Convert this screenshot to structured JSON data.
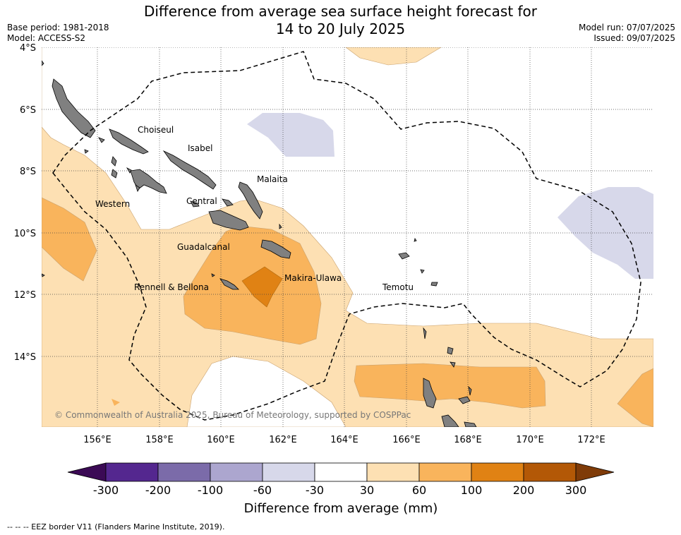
{
  "title_line1": "Difference from average sea surface height forecast for",
  "title_line2": "14 to 20 July 2025",
  "base_period": "Base period: 1981-2018",
  "model": "Model: ACCESS-S2",
  "model_run": "Model run: 07/07/2025",
  "issued": "Issued: 09/07/2025",
  "copyright": "© Commonwealth of Australia 2025, Bureau of Meteorology, supported by COSPPac",
  "lat_labels": [
    "4°S",
    "6°S",
    "8°S",
    "10°S",
    "12°S",
    "14°S"
  ],
  "lon_labels": [
    "156°E",
    "158°E",
    "160°E",
    "162°E",
    "164°E",
    "166°E",
    "168°E",
    "170°E",
    "172°E"
  ],
  "regions": [
    {
      "name": "Choiseul"
    },
    {
      "name": "Isabel"
    },
    {
      "name": "Malaita"
    },
    {
      "name": "Western"
    },
    {
      "name": "Central"
    },
    {
      "name": "Guadalcanal"
    },
    {
      "name": "Makira-Ulawa"
    },
    {
      "name": "Rennell & Bellona"
    },
    {
      "name": "Temotu"
    }
  ],
  "colorbar": {
    "label": "Difference from average (mm)",
    "ticks": [
      "-300",
      "-200",
      "-100",
      "-60",
      "-30",
      "30",
      "60",
      "100",
      "200",
      "300"
    ],
    "colors": [
      "#3b0a55",
      "#54278f",
      "#7b6ba9",
      "#aca6cf",
      "#d7d8ea",
      "#ffffff",
      "#fde0b3",
      "#f9b45c",
      "#e08214",
      "#b35806",
      "#7f3b08"
    ]
  },
  "footnote": "--  --  -- EEZ border V11 (Flanders Marine Institute, 2019)."
}
